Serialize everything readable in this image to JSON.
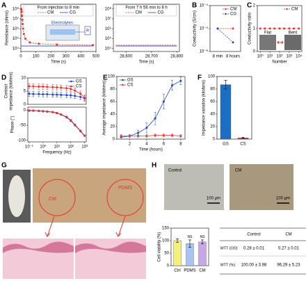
{
  "panel_labels": [
    "A",
    "B",
    "C",
    "D",
    "E",
    "F",
    "G",
    "H"
  ],
  "chart_data": [
    {
      "type": "line",
      "legend": "upper right",
      "legend_title": "From injection to 8 min",
      "xlabel": "Time (s)",
      "ylabel": "Resistance (ohms)",
      "xlim": [
        0,
        500
      ],
      "xticks": [
        0,
        100,
        200,
        300,
        400,
        500
      ],
      "ylog": true,
      "ylim": [
        5000,
        300000000
      ],
      "yticks": [
        {
          "value": 10000,
          "label": "10⁴"
        },
        {
          "value": 100000,
          "label": "10⁵"
        },
        {
          "value": 1000000,
          "label": "10⁶"
        },
        {
          "value": 10000000,
          "label": "10⁷"
        },
        {
          "value": 100000000,
          "label": "10⁸"
        }
      ],
      "series": [
        {
          "name": "CM",
          "color": "#e8302a",
          "marker": "circle",
          "dashed": true,
          "x": [
            2,
            4,
            6,
            8,
            10,
            12,
            15,
            20,
            30,
            60,
            120,
            240,
            480
          ],
          "values": [
            100000000,
            80000000,
            50000000,
            20000000,
            8000000,
            3000000,
            1000000,
            300000,
            100000,
            40000,
            30000,
            25000,
            22000
          ]
        },
        {
          "name": "CG",
          "color": "#2040d0",
          "marker": "none",
          "x": [
            0,
            120,
            240,
            360,
            480
          ],
          "values": [
            18000,
            18000,
            18000,
            18000,
            18000
          ]
        }
      ]
    },
    {
      "type": "line",
      "legend": "upper right",
      "legend_title": "From 7 h 56 min to 8 h",
      "xlabel": "Time (s)",
      "xlim": [
        28550,
        28810
      ],
      "xticks": [
        {
          "value": 28600,
          "label": "28,600"
        },
        {
          "value": 28700,
          "label": "28,700"
        },
        {
          "value": 28800,
          "label": "28,800"
        }
      ],
      "ylog": true,
      "ylim": [
        5000,
        300000000
      ],
      "yticks": [
        {
          "value": 10000,
          "label": "10⁴"
        },
        {
          "value": 100000,
          "label": "10⁵"
        },
        {
          "value": 1000000,
          "label": "10⁶"
        },
        {
          "value": 10000000,
          "label": "10⁷"
        },
        {
          "value": 100000000,
          "label": "10⁸"
        }
      ],
      "series": [
        {
          "name": "CM",
          "color": "#e8302a",
          "marker": "none",
          "dashed": true,
          "x": [
            28560,
            28640,
            28720,
            28800
          ],
          "values": [
            22000,
            22000,
            22000,
            22000
          ]
        },
        {
          "name": "CG",
          "color": "#2040d0",
          "marker": "none",
          "x": [
            28560,
            28640,
            28720,
            28800
          ],
          "values": [
            18000,
            18000,
            18000,
            18000
          ]
        }
      ]
    },
    {
      "type": "line",
      "legend": "upper right",
      "ylabel": "Conductivity (S/cm)",
      "categories": [
        "8 min",
        "8 hours"
      ],
      "ylog": true,
      "ylim": [
        1e-06,
        0.0001
      ],
      "yticks": [
        {
          "value": 1e-06,
          "label": "10⁻⁶"
        },
        {
          "value": 1e-05,
          "label": "10⁻⁵"
        },
        {
          "value": 0.0001,
          "label": "10⁻⁴"
        }
      ],
      "series": [
        {
          "name": "CM",
          "color": "#e8302a",
          "marker": "circle",
          "dashed": true,
          "values": [
            1e-05,
            1e-05
          ]
        },
        {
          "name": "CG",
          "color": "#2040d0",
          "marker": "circle",
          "dashed": true,
          "values": [
            1e-05,
            2.5e-06
          ]
        }
      ]
    },
    {
      "type": "line",
      "legend": "upper right",
      "xlabel": "Number",
      "ylabel": "Conductivity ratio",
      "xlog": true,
      "xlim": [
        0.5,
        20000
      ],
      "xticks": [
        {
          "value": 1,
          "label": "10⁰"
        },
        {
          "value": 10,
          "label": "10¹"
        },
        {
          "value": 100,
          "label": "10²"
        },
        {
          "value": 1000,
          "label": "10³"
        },
        {
          "value": 10000,
          "label": "10⁴"
        }
      ],
      "ylim": [
        0,
        2
      ],
      "yticks": [
        0,
        1,
        2
      ],
      "series": [
        {
          "name": "CM",
          "color": "#e8302a",
          "marker": "circle",
          "dashed": true,
          "x": [
            1,
            3,
            10,
            30,
            100,
            300,
            1000,
            3000,
            10000
          ],
          "values": [
            1,
            1,
            1,
            1,
            1,
            1,
            1,
            1,
            1
          ]
        }
      ]
    },
    {
      "type": "line",
      "legend": "upper right",
      "ylabel": [
        "Contact",
        "impedance (kilohms)"
      ],
      "xlog": true,
      "xlim": [
        0.08,
        1300
      ],
      "ylim": [
        0,
        10
      ],
      "yticks": [
        0,
        5,
        10
      ],
      "series": [
        {
          "name": "GS",
          "color": "#2040d0",
          "marker": "circle",
          "x": [
            0.1,
            0.2,
            0.5,
            1,
            2,
            5,
            10,
            20,
            50,
            100,
            200,
            500,
            1000
          ],
          "values": [
            4,
            3.9,
            3.9,
            3.8,
            3.8,
            3.7,
            3.7,
            3.6,
            3.5,
            3.4,
            3.2,
            2.8,
            2.2
          ],
          "errors": [
            1,
            1,
            1,
            1,
            1,
            1,
            1,
            1,
            1,
            1,
            1,
            1,
            1
          ]
        },
        {
          "name": "CS",
          "color": "#e8302a",
          "marker": "circle",
          "x": [
            0.1,
            0.2,
            0.5,
            1,
            2,
            5,
            10,
            20,
            50,
            100,
            200,
            500,
            1000
          ],
          "values": [
            6.8,
            6.8,
            6.7,
            6.7,
            6.6,
            6.5,
            6.4,
            6.3,
            6.1,
            5.8,
            5.2,
            4,
            2.5
          ],
          "errors": [
            1,
            1,
            1,
            1,
            1,
            1,
            1,
            1,
            1,
            1,
            1,
            1,
            1
          ]
        }
      ]
    },
    {
      "type": "line",
      "xlabel": "Frequency (Hz)",
      "ylabel": "Phase (°)",
      "xlog": true,
      "xlim": [
        0.08,
        1300
      ],
      "xticks": [
        {
          "value": 0.1,
          "label": "10⁻¹"
        },
        {
          "value": 1,
          "label": "10⁰"
        },
        {
          "value": 10,
          "label": "10¹"
        },
        {
          "value": 100,
          "label": "10²"
        },
        {
          "value": 1000,
          "label": "10³"
        }
      ],
      "ylim": [
        -105,
        10
      ],
      "yticks": [
        -100,
        -50,
        0
      ],
      "series": [
        {
          "color": "#2040d0",
          "marker": "circle",
          "x": [
            0.1,
            0.2,
            0.5,
            1,
            2,
            5,
            10,
            20,
            50,
            100,
            200,
            500,
            1000
          ],
          "values": [
            -2,
            -2,
            -3,
            -4,
            -5,
            -7,
            -10,
            -15,
            -24,
            -35,
            -50,
            -70,
            -85
          ]
        },
        {
          "color": "#e8302a",
          "marker": "circle",
          "x": [
            0.1,
            0.2,
            0.5,
            1,
            2,
            5,
            10,
            20,
            50,
            100,
            200,
            500,
            1000
          ],
          "values": [
            -1,
            -1,
            -2,
            -3,
            -4,
            -6,
            -9,
            -14,
            -22,
            -33,
            -48,
            -68,
            -84
          ]
        }
      ]
    },
    {
      "type": "line",
      "legend": "upper left",
      "xlabel": "Time (hours)",
      "ylabel": "Average impedance (kilohms)",
      "xlim": [
        0.5,
        8.5
      ],
      "xticks": [
        2,
        4,
        6,
        8
      ],
      "ylim": [
        0,
        100
      ],
      "yticks": [
        0,
        20,
        40,
        60,
        80,
        100
      ],
      "series": [
        {
          "name": "GS",
          "color": "#2040d0",
          "marker": "circle",
          "x": [
            1,
            2,
            3,
            4,
            5,
            6,
            7,
            8
          ],
          "values": [
            3,
            5,
            10,
            18,
            33,
            60,
            86,
            93
          ],
          "errors": [
            1,
            2,
            4,
            8,
            10,
            12,
            8,
            6
          ]
        },
        {
          "name": "CS",
          "color": "#e8302a",
          "marker": "circle",
          "x": [
            1,
            2,
            3,
            4,
            5,
            6,
            7,
            8
          ],
          "values": [
            5,
            5,
            5,
            5,
            6,
            6,
            6,
            5
          ],
          "errors": [
            2,
            2,
            2,
            2,
            2,
            2,
            2,
            2
          ]
        }
      ]
    },
    {
      "type": "bar",
      "ylabel": "Impedance variation (kilohms)",
      "categories": [
        "GS",
        "CS"
      ],
      "values": [
        87,
        2
      ],
      "errors": [
        7,
        1
      ],
      "colors": [
        "#1a6fc4",
        "#d7381c"
      ],
      "ylim": [
        0,
        100
      ],
      "yticks": [
        0,
        20,
        40,
        60,
        80,
        100
      ]
    },
    {
      "type": "bar",
      "ylabel": "Cell viability (%)",
      "categories": [
        "Ctrl",
        "PDMS",
        "CM"
      ],
      "values": [
        100,
        88,
        95
      ],
      "errors": [
        7,
        15,
        8
      ],
      "colors": [
        "#f5f07a",
        "#a9c4f0",
        "#c9a6e8"
      ],
      "bar_labels": [
        null,
        "NS",
        "NS"
      ],
      "ylim": [
        0,
        150
      ],
      "yticks": [
        0,
        50,
        100,
        150
      ]
    }
  ],
  "annotations": {
    "a": [
      "Electrolytes",
      "Chamber",
      "R"
    ],
    "c": [
      "Flat",
      "Bent"
    ],
    "g": [
      "CM",
      "PDMS"
    ],
    "h": [
      "Control",
      "CM",
      "100 μm",
      "100 μm"
    ]
  },
  "table": {
    "header": [
      "Control",
      "CM"
    ],
    "rows": [
      [
        "MTT (OD)",
        "0.28 ± 0.01",
        "0.27 ± 0.01"
      ],
      [
        "MTT (%)",
        "100.00 ± 3.98",
        "96.29 ± 5.23"
      ]
    ]
  }
}
